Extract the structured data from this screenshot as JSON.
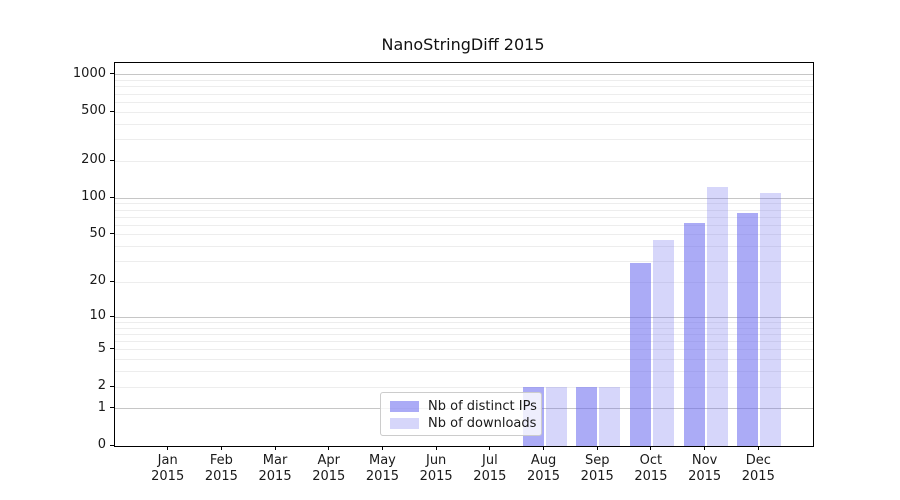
{
  "title": "NanoStringDiff 2015",
  "legend": {
    "items": [
      {
        "label": "Nb of distinct IPs",
        "color": "rgba(102,102,238,0.55)"
      },
      {
        "label": "Nb of downloads",
        "color": "rgba(102,102,238,0.27)"
      }
    ]
  },
  "colors": {
    "bar_distinct_ips": "rgba(102,102,238,0.55)",
    "bar_downloads": "rgba(102,102,238,0.27)",
    "grid_major": "#c6c6c6",
    "grid_minor": "#ededed",
    "axis": "#000000",
    "text": "#1a1a1a",
    "legend_border": "#cccccc"
  },
  "chart_data": {
    "type": "bar",
    "title": "NanoStringDiff 2015",
    "yscale": "log1p",
    "categories": [
      "Jan 2015",
      "Feb 2015",
      "Mar 2015",
      "Apr 2015",
      "May 2015",
      "Jun 2015",
      "Jul 2015",
      "Aug 2015",
      "Sep 2015",
      "Oct 2015",
      "Nov 2015",
      "Dec 2015"
    ],
    "series": [
      {
        "name": "Nb of distinct IPs",
        "color": "rgba(102,102,238,0.55)",
        "values": [
          0,
          0,
          0,
          0,
          0,
          0,
          0,
          2,
          2,
          29,
          62,
          75
        ]
      },
      {
        "name": "Nb of downloads",
        "color": "rgba(102,102,238,0.27)",
        "values": [
          0,
          0,
          0,
          0,
          0,
          0,
          0,
          2,
          2,
          45,
          124,
          111
        ]
      }
    ],
    "yticks": [
      0,
      1,
      2,
      5,
      10,
      20,
      50,
      100,
      200,
      500,
      1000
    ],
    "ylim": [
      0,
      1250
    ],
    "grid_major_values": [
      1,
      10,
      100,
      1000
    ],
    "grid_minor_values": [
      2,
      3,
      4,
      5,
      6,
      7,
      8,
      9,
      20,
      30,
      40,
      50,
      60,
      70,
      80,
      90,
      200,
      300,
      400,
      500,
      600,
      700,
      800,
      900
    ],
    "grid": "on",
    "legend_position": "lower center",
    "xlabel": "",
    "ylabel": ""
  }
}
